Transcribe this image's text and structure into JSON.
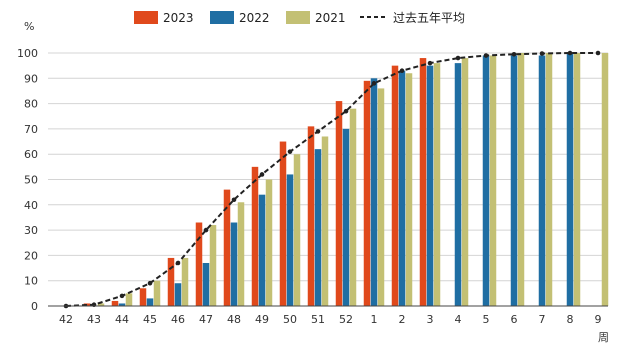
{
  "chart_data": {
    "type": "bar",
    "y_unit": "%",
    "x_unit": "周",
    "categories": [
      "42",
      "43",
      "44",
      "45",
      "46",
      "47",
      "48",
      "49",
      "50",
      "51",
      "52",
      "1",
      "2",
      "3",
      "4",
      "5",
      "6",
      "7",
      "8",
      "9"
    ],
    "ylim": [
      0,
      100
    ],
    "yticks": [
      0,
      10,
      20,
      30,
      40,
      50,
      60,
      70,
      80,
      90,
      100
    ],
    "grid": true,
    "legend_position": "top",
    "series": [
      {
        "name": "2023",
        "color": "#e0491c",
        "values": [
          0,
          1,
          2,
          7,
          19,
          33,
          46,
          55,
          65,
          71,
          81,
          89,
          95,
          98,
          null,
          null,
          null,
          null,
          null,
          null
        ]
      },
      {
        "name": "2022",
        "color": "#1f6ea3",
        "values": [
          0,
          0,
          1,
          3,
          9,
          17,
          33,
          44,
          52,
          62,
          70,
          90,
          93,
          95,
          96,
          99,
          99,
          99,
          100,
          null
        ]
      },
      {
        "name": "2021",
        "color": "#c3c074",
        "values": [
          0,
          1,
          5,
          10,
          19,
          32,
          41,
          50,
          60,
          67,
          78,
          86,
          92,
          96,
          98,
          99,
          100,
          100,
          100,
          100
        ]
      }
    ],
    "average_line": {
      "name": "过去五年平均",
      "color": "#222222",
      "values": [
        0,
        0.5,
        4,
        9,
        17,
        30,
        42,
        52,
        61,
        69,
        77,
        88,
        93,
        96,
        98,
        99,
        99.5,
        99.8,
        100,
        100
      ]
    }
  }
}
